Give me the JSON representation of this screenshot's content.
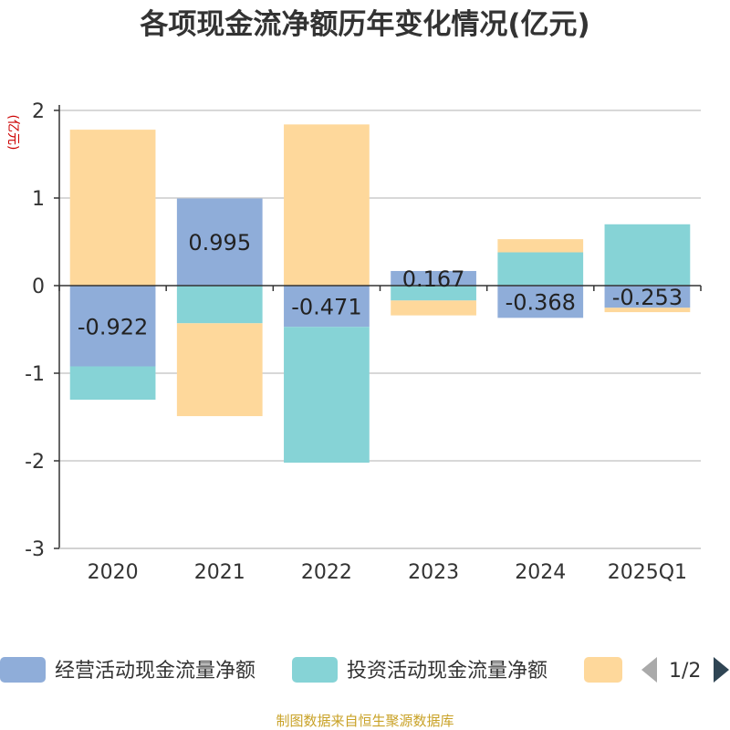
{
  "title": "各项现金流净额历年变化情况(亿元)",
  "source": "制图数据来自恒生聚源数据库",
  "legend_pager": "1/2",
  "colors": {
    "operating": "#8fadd9",
    "investing": "#86d3d6",
    "financing": "#fed89b",
    "axis": "#333333",
    "grid": "#cccccc"
  },
  "chart_data": {
    "type": "bar",
    "stacked": true,
    "title": "各项现金流净额历年变化情况(亿元)",
    "ylabel": "(亿元)",
    "xlabel": "",
    "ylim": [
      -3,
      2
    ],
    "yticks": [
      -3,
      -2,
      -1,
      0,
      1,
      2
    ],
    "grid": true,
    "legend_position": "bottom",
    "categories": [
      "2020",
      "2021",
      "2022",
      "2023",
      "2024",
      "2025Q1"
    ],
    "series": [
      {
        "name": "经营活动现金流量净额",
        "key": "operating",
        "values": [
          -0.922,
          0.995,
          -0.471,
          0.167,
          -0.368,
          -0.253
        ],
        "labels": [
          "-0.922",
          "0.995",
          "-0.471",
          "0.167",
          "-0.368",
          "-0.253"
        ]
      },
      {
        "name": "投资活动现金流量净额",
        "key": "investing",
        "values": [
          -0.38,
          -0.43,
          -1.55,
          -0.17,
          0.38,
          0.7
        ]
      },
      {
        "name": "",
        "key": "financing",
        "values": [
          1.78,
          -1.06,
          1.84,
          -0.17,
          0.15,
          -0.05
        ]
      }
    ]
  }
}
